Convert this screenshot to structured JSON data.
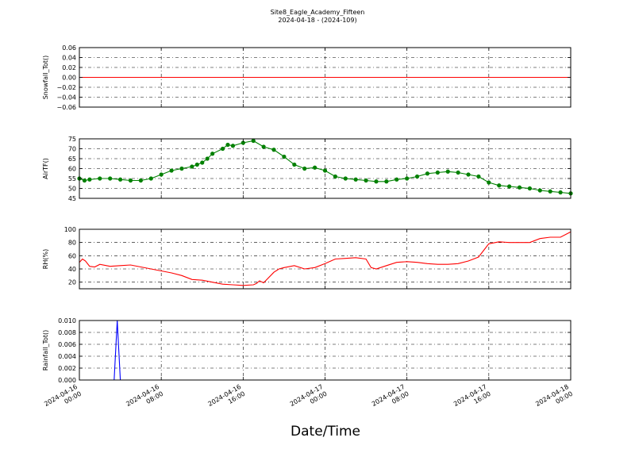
{
  "chart_data": {
    "title": "Site8_Eagle_Academy_Fifteen",
    "subtitle": "2024-04-18 - (2024-109)",
    "xlabel": "Date/Time",
    "x_ticks": [
      "2024-04-16\n00:00",
      "2024-04-16\n08:00",
      "2024-04-16\n16:00",
      "2024-04-17\n00:00",
      "2024-04-17\n08:00",
      "2024-04-17\n16:00",
      "2024-04-18\n00:00"
    ],
    "x_range_hours": [
      0,
      48
    ],
    "grid": true,
    "panels": [
      {
        "type": "line",
        "ylabel": "Snowfall_Tot()",
        "ylim": [
          -0.06,
          0.06
        ],
        "yticks": [
          "0.06",
          "0.04",
          "0.02",
          "0.00",
          "−0.02",
          "−0.04",
          "−0.06"
        ],
        "ytick_values": [
          0.06,
          0.04,
          0.02,
          0.0,
          -0.02,
          -0.04,
          -0.06
        ],
        "color": "#ff0000",
        "marker": false,
        "series": {
          "x_hours": [
            0,
            48
          ],
          "values": [
            0,
            0
          ]
        }
      },
      {
        "type": "line",
        "ylabel": "AirTF()",
        "ylim": [
          45,
          75
        ],
        "yticks": [
          "75",
          "70",
          "65",
          "60",
          "55",
          "50",
          "45"
        ],
        "ytick_values": [
          75,
          70,
          65,
          60,
          55,
          50,
          45
        ],
        "color": "#008000",
        "marker": true,
        "series": {
          "x_hours": [
            0,
            0.5,
            1,
            2,
            3,
            4,
            5,
            6,
            7,
            8,
            9,
            10,
            11,
            11.5,
            12,
            12.5,
            13,
            14,
            14.5,
            15,
            16,
            17,
            18,
            19,
            20,
            21,
            22,
            23,
            24,
            25,
            26,
            27,
            28,
            29,
            30,
            31,
            32,
            33,
            34,
            35,
            36,
            37,
            38,
            39,
            40,
            41,
            42,
            43,
            44,
            45,
            46,
            47,
            48
          ],
          "values": [
            55,
            54,
            54.5,
            55,
            55,
            54.5,
            54,
            54,
            55,
            57,
            59,
            60,
            61,
            62,
            63,
            65,
            67.5,
            70,
            72,
            71.5,
            73,
            74,
            71,
            69.5,
            66,
            62,
            60,
            60.5,
            59,
            56,
            55,
            54.5,
            54,
            53.5,
            53.5,
            54.5,
            55,
            56,
            57.5,
            58,
            58.5,
            58,
            57,
            56,
            53,
            51.5,
            51,
            50.5,
            50,
            49,
            48.5,
            48,
            47.5
          ]
        }
      },
      {
        "type": "line",
        "ylabel": "RH(%)",
        "ylim": [
          10,
          100
        ],
        "yticks": [
          "100",
          "80",
          "60",
          "40",
          "20"
        ],
        "ytick_values": [
          100,
          80,
          60,
          40,
          20
        ],
        "color": "#ff0000",
        "marker": false,
        "series": {
          "x_hours": [
            0,
            0.3,
            0.6,
            1,
            1.5,
            2,
            3,
            4,
            5,
            6,
            7,
            8,
            9,
            10,
            11,
            12,
            13,
            14,
            15,
            16,
            17,
            17.3,
            17.6,
            18,
            19,
            19.5,
            20,
            21,
            22,
            23,
            24,
            25,
            26,
            27,
            28,
            28.5,
            29,
            30,
            31,
            32,
            33,
            34,
            35,
            36,
            37,
            38,
            39,
            40,
            41,
            42,
            43,
            44,
            45,
            46,
            47,
            48
          ],
          "values": [
            50,
            55,
            52,
            44,
            43,
            47,
            44,
            45,
            46,
            43,
            40,
            37,
            34,
            30,
            24,
            23,
            20,
            17,
            16,
            15,
            16,
            18,
            22,
            19,
            35,
            40,
            42,
            45,
            40,
            42,
            48,
            55,
            56,
            57,
            55,
            42,
            40,
            45,
            50,
            51,
            50,
            48,
            47,
            47,
            48,
            52,
            58,
            78,
            81,
            80,
            80,
            80,
            86,
            88,
            88,
            96
          ]
        }
      },
      {
        "type": "line",
        "ylabel": "Rainfall_Tot()",
        "ylim": [
          0,
          0.01
        ],
        "yticks": [
          "0.010",
          "0.008",
          "0.006",
          "0.004",
          "0.002",
          "0.000"
        ],
        "ytick_values": [
          0.01,
          0.008,
          0.006,
          0.004,
          0.002,
          0.0
        ],
        "color": "#0000ff",
        "marker": false,
        "series": {
          "x_hours": [
            0,
            3.4,
            3.7,
            4,
            48
          ],
          "values": [
            0,
            0,
            0.01,
            0,
            0
          ]
        }
      }
    ]
  }
}
